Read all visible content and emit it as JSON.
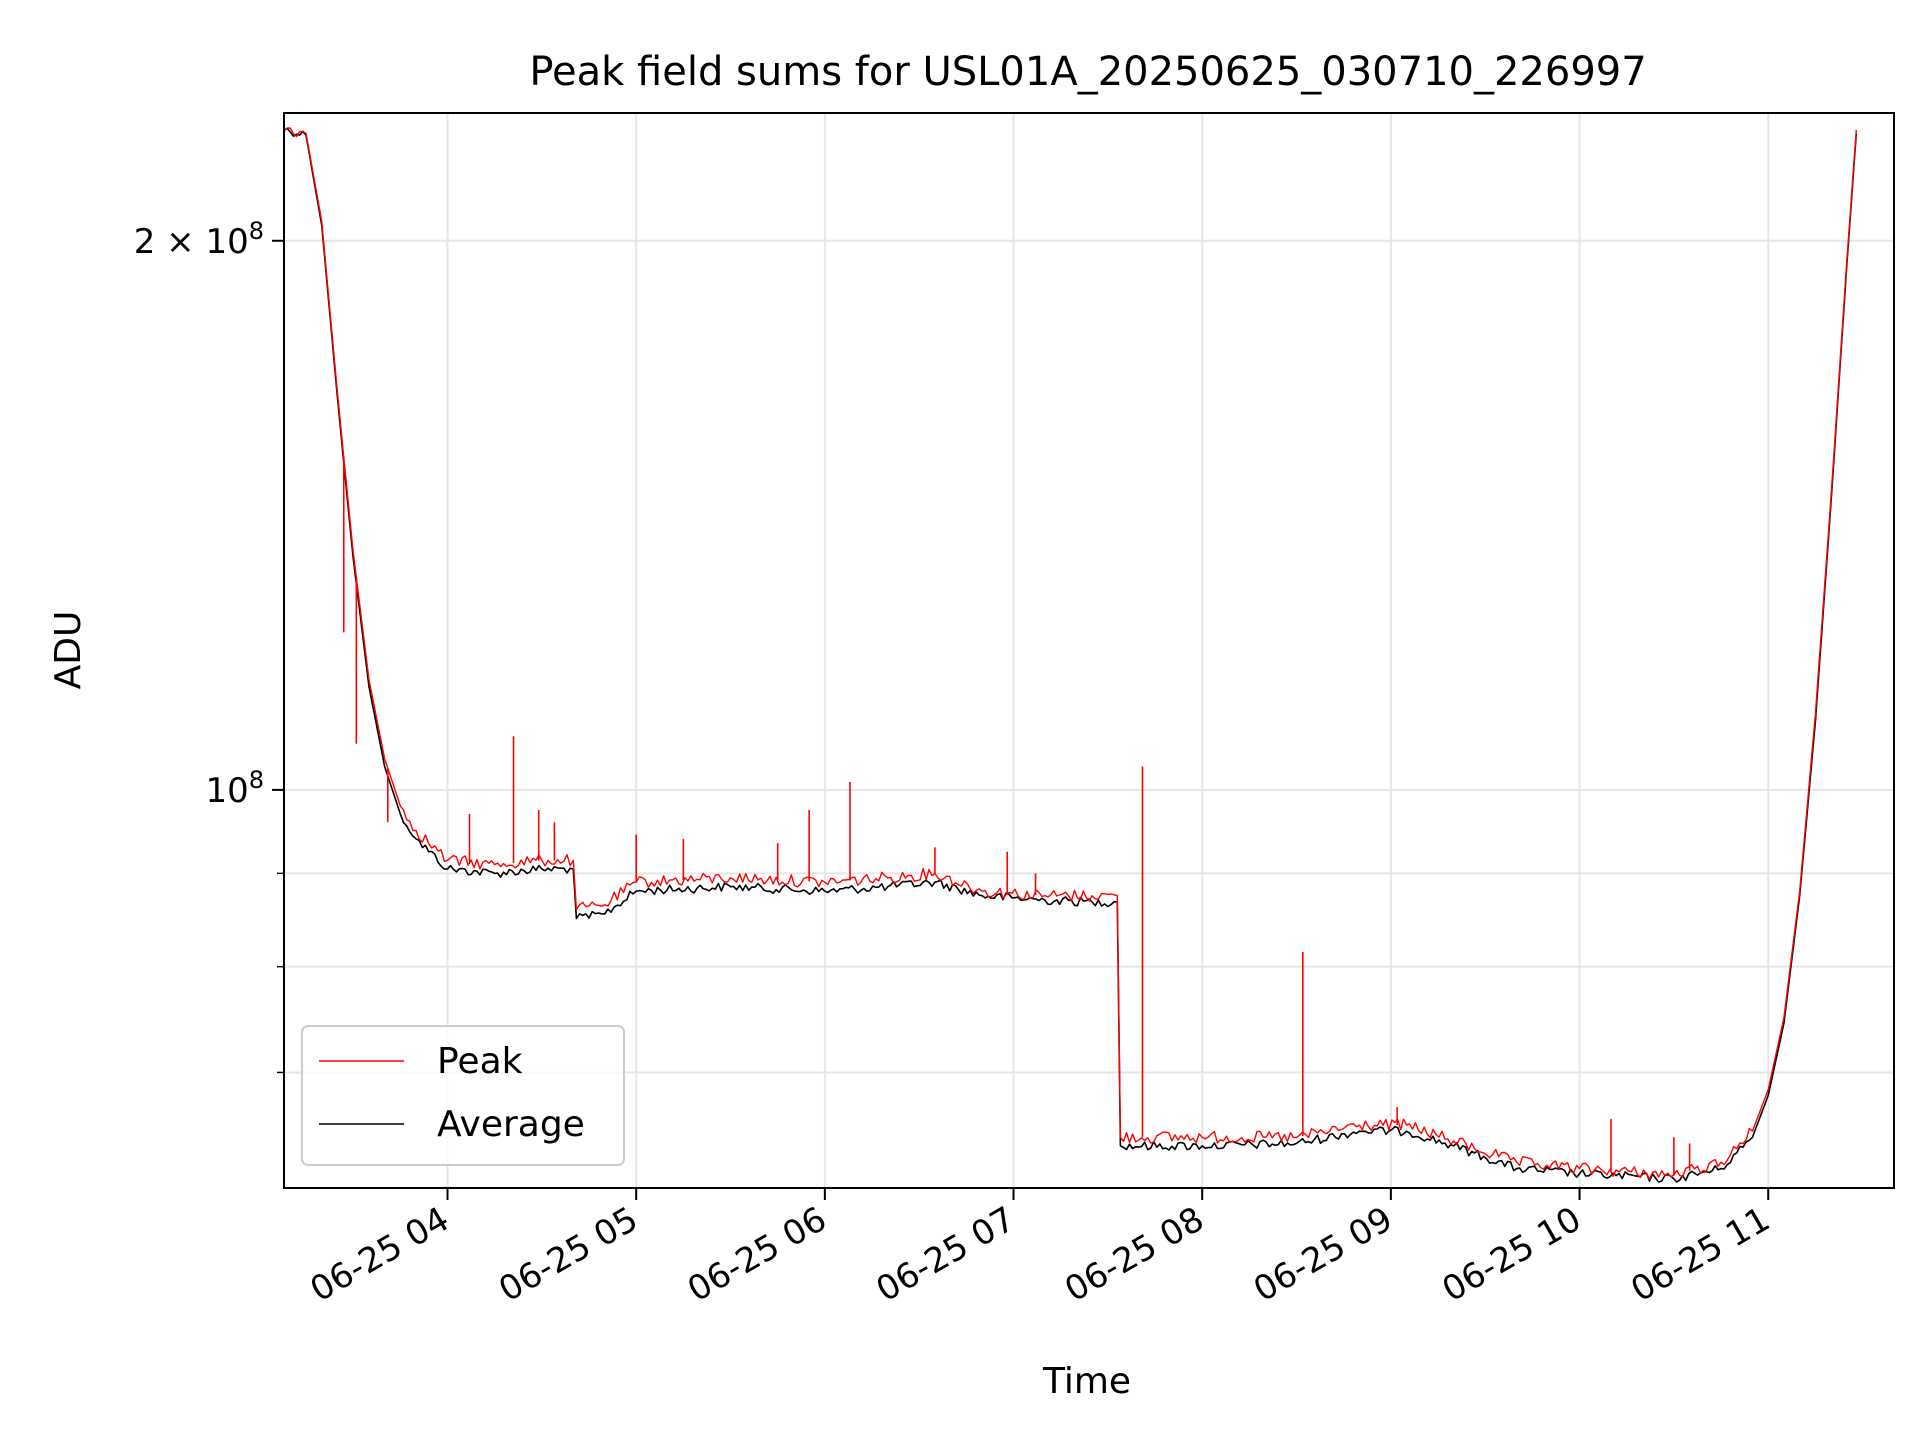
{
  "chart_data": {
    "type": "line",
    "title": "Peak field sums for USL01A_20250625_030710_226997",
    "xlabel": "Time",
    "ylabel": "ADU",
    "y_scale": "log",
    "grid": true,
    "legend_position": "lower-left",
    "xlim": [
      "2025-06-25 03:08",
      "2025-06-25 11:40"
    ],
    "ylim": [
      60500000,
      235000000
    ],
    "x_ticks": [
      {
        "t": "2025-06-25 04:00",
        "label": "06-25 04"
      },
      {
        "t": "2025-06-25 05:00",
        "label": "06-25 05"
      },
      {
        "t": "2025-06-25 06:00",
        "label": "06-25 06"
      },
      {
        "t": "2025-06-25 07:00",
        "label": "06-25 07"
      },
      {
        "t": "2025-06-25 08:00",
        "label": "06-25 08"
      },
      {
        "t": "2025-06-25 09:00",
        "label": "06-25 09"
      },
      {
        "t": "2025-06-25 10:00",
        "label": "06-25 10"
      },
      {
        "t": "2025-06-25 11:00",
        "label": "06-25 11"
      }
    ],
    "y_major_ticks": [
      {
        "value": 100000000,
        "label_base": "10",
        "label_exp": "8"
      },
      {
        "value": 200000000,
        "label_base": "2 × 10",
        "label_exp": "8"
      }
    ],
    "y_minor_ticks": [
      60000000,
      70000000,
      80000000,
      90000000
    ],
    "series": [
      {
        "name": "Peak",
        "color": "#ff0000",
        "points": [
          [
            "2025-06-25 03:07",
            231000000
          ],
          [
            "2025-06-25 03:15",
            229000000
          ],
          [
            "2025-06-25 03:20",
            205000000
          ],
          [
            "2025-06-25 03:25",
            165000000
          ],
          [
            "2025-06-25 03:30",
            135000000
          ],
          [
            "2025-06-25 03:35",
            115000000
          ],
          [
            "2025-06-25 03:40",
            104000000
          ],
          [
            "2025-06-25 03:45",
            98000000
          ],
          [
            "2025-06-25 03:50",
            95000000
          ],
          [
            "2025-06-25 04:00",
            91500000
          ],
          [
            "2025-06-25 04:15",
            91000000
          ],
          [
            "2025-06-25 04:30",
            91500000
          ],
          [
            "2025-06-25 04:40",
            91500000
          ],
          [
            "2025-06-25 04:41",
            86000000
          ],
          [
            "2025-06-25 04:50",
            86500000
          ],
          [
            "2025-06-25 05:00",
            89000000
          ],
          [
            "2025-06-25 05:30",
            89500000
          ],
          [
            "2025-06-25 06:00",
            89000000
          ],
          [
            "2025-06-25 06:20",
            89500000
          ],
          [
            "2025-06-25 06:35",
            90000000
          ],
          [
            "2025-06-25 06:50",
            88000000
          ],
          [
            "2025-06-25 07:10",
            87500000
          ],
          [
            "2025-06-25 07:25",
            87500000
          ],
          [
            "2025-06-25 07:33",
            87500000
          ],
          [
            "2025-06-25 07:34",
            64500000
          ],
          [
            "2025-06-25 08:00",
            64500000
          ],
          [
            "2025-06-25 08:30",
            64500000
          ],
          [
            "2025-06-25 08:50",
            65500000
          ],
          [
            "2025-06-25 09:05",
            65500000
          ],
          [
            "2025-06-25 09:20",
            64200000
          ],
          [
            "2025-06-25 09:40",
            62500000
          ],
          [
            "2025-06-25 10:00",
            62000000
          ],
          [
            "2025-06-25 10:30",
            61500000
          ],
          [
            "2025-06-25 10:45",
            62500000
          ],
          [
            "2025-06-25 10:55",
            65000000
          ],
          [
            "2025-06-25 11:00",
            68500000
          ],
          [
            "2025-06-25 11:05",
            75000000
          ],
          [
            "2025-06-25 11:10",
            88000000
          ],
          [
            "2025-06-25 11:15",
            110000000
          ],
          [
            "2025-06-25 11:20",
            145000000
          ],
          [
            "2025-06-25 11:25",
            195000000
          ],
          [
            "2025-06-25 11:28",
            230000000
          ]
        ],
        "spikes": [
          [
            "2025-06-25 03:27",
            122000000
          ],
          [
            "2025-06-25 03:31",
            106000000
          ],
          [
            "2025-06-25 03:41",
            96000000
          ],
          [
            "2025-06-25 04:07",
            97000000
          ],
          [
            "2025-06-25 04:21",
            107000000
          ],
          [
            "2025-06-25 04:29",
            97500000
          ],
          [
            "2025-06-25 04:34",
            96000000
          ],
          [
            "2025-06-25 05:00",
            94500000
          ],
          [
            "2025-06-25 05:15",
            94000000
          ],
          [
            "2025-06-25 05:45",
            93500000
          ],
          [
            "2025-06-25 05:55",
            97500000
          ],
          [
            "2025-06-25 06:08",
            101000000
          ],
          [
            "2025-06-25 06:35",
            93000000
          ],
          [
            "2025-06-25 06:58",
            92500000
          ],
          [
            "2025-06-25 07:07",
            90000000
          ],
          [
            "2025-06-25 07:41",
            103000000
          ],
          [
            "2025-06-25 08:32",
            81500000
          ],
          [
            "2025-06-25 09:02",
            67000000
          ],
          [
            "2025-06-25 10:10",
            66000000
          ],
          [
            "2025-06-25 10:30",
            64500000
          ],
          [
            "2025-06-25 10:35",
            64000000
          ]
        ]
      },
      {
        "name": "Average",
        "color": "#000000",
        "points": [
          [
            "2025-06-25 03:07",
            230500000
          ],
          [
            "2025-06-25 03:15",
            228500000
          ],
          [
            "2025-06-25 03:20",
            204000000
          ],
          [
            "2025-06-25 03:25",
            164000000
          ],
          [
            "2025-06-25 03:30",
            134000000
          ],
          [
            "2025-06-25 03:35",
            114000000
          ],
          [
            "2025-06-25 03:40",
            103000000
          ],
          [
            "2025-06-25 03:45",
            97000000
          ],
          [
            "2025-06-25 03:50",
            94000000
          ],
          [
            "2025-06-25 04:00",
            90500000
          ],
          [
            "2025-06-25 04:15",
            90000000
          ],
          [
            "2025-06-25 04:30",
            90500000
          ],
          [
            "2025-06-25 04:40",
            90500000
          ],
          [
            "2025-06-25 04:41",
            85000000
          ],
          [
            "2025-06-25 04:50",
            85500000
          ],
          [
            "2025-06-25 05:00",
            88000000
          ],
          [
            "2025-06-25 05:30",
            88500000
          ],
          [
            "2025-06-25 06:00",
            88000000
          ],
          [
            "2025-06-25 06:20",
            88500000
          ],
          [
            "2025-06-25 06:35",
            89000000
          ],
          [
            "2025-06-25 06:50",
            87500000
          ],
          [
            "2025-06-25 07:10",
            87000000
          ],
          [
            "2025-06-25 07:25",
            86800000
          ],
          [
            "2025-06-25 07:33",
            86800000
          ],
          [
            "2025-06-25 07:34",
            63800000
          ],
          [
            "2025-06-25 08:00",
            63800000
          ],
          [
            "2025-06-25 08:30",
            64000000
          ],
          [
            "2025-06-25 08:50",
            65000000
          ],
          [
            "2025-06-25 09:05",
            65000000
          ],
          [
            "2025-06-25 09:20",
            63800000
          ],
          [
            "2025-06-25 09:40",
            62000000
          ],
          [
            "2025-06-25 10:00",
            61600000
          ],
          [
            "2025-06-25 10:30",
            61200000
          ],
          [
            "2025-06-25 10:45",
            62000000
          ],
          [
            "2025-06-25 10:55",
            64500000
          ],
          [
            "2025-06-25 11:00",
            68000000
          ],
          [
            "2025-06-25 11:05",
            74500000
          ],
          [
            "2025-06-25 11:10",
            87500000
          ],
          [
            "2025-06-25 11:15",
            109000000
          ],
          [
            "2025-06-25 11:20",
            144000000
          ],
          [
            "2025-06-25 11:25",
            194000000
          ],
          [
            "2025-06-25 11:28",
            229000000
          ]
        ]
      }
    ]
  }
}
